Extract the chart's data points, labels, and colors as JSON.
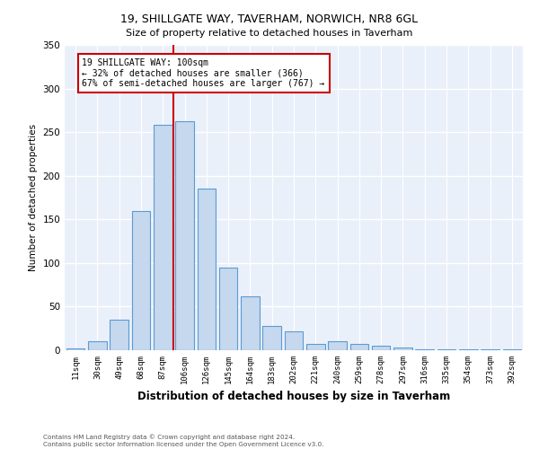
{
  "title": "19, SHILLGATE WAY, TAVERHAM, NORWICH, NR8 6GL",
  "subtitle": "Size of property relative to detached houses in Taverham",
  "xlabel": "Distribution of detached houses by size in Taverham",
  "ylabel": "Number of detached properties",
  "categories": [
    "11sqm",
    "30sqm",
    "49sqm",
    "68sqm",
    "87sqm",
    "106sqm",
    "126sqm",
    "145sqm",
    "164sqm",
    "183sqm",
    "202sqm",
    "221sqm",
    "240sqm",
    "259sqm",
    "278sqm",
    "297sqm",
    "316sqm",
    "335sqm",
    "354sqm",
    "373sqm",
    "392sqm"
  ],
  "bar_heights": [
    2,
    10,
    35,
    160,
    258,
    263,
    185,
    95,
    62,
    28,
    22,
    7,
    10,
    7,
    5,
    3,
    1,
    1,
    1,
    1,
    1
  ],
  "bar_color": "#c5d8ed",
  "bar_edge_color": "#5b9bd5",
  "bar_edge_width": 0.8,
  "annotation_text": "19 SHILLGATE WAY: 100sqm\n← 32% of detached houses are smaller (366)\n67% of semi-detached houses are larger (767) →",
  "annotation_box_color": "#ffffff",
  "annotation_box_edge_color": "#cc0000",
  "property_line_color": "#cc0000",
  "background_color": "#eaf0fa",
  "grid_color": "#ffffff",
  "footer_line1": "Contains HM Land Registry data © Crown copyright and database right 2024.",
  "footer_line2": "Contains public sector information licensed under the Open Government Licence v3.0.",
  "ylim": [
    0,
    350
  ],
  "yticks": [
    0,
    50,
    100,
    150,
    200,
    250,
    300,
    350
  ]
}
